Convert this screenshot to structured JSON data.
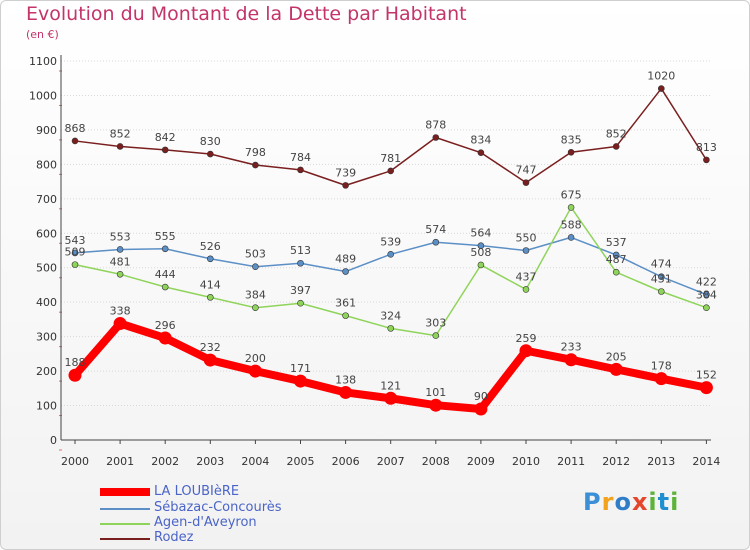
{
  "header": {
    "title": "Evolution du Montant de la Dette par Habitant",
    "subtitle": "(en €)"
  },
  "chart_data": {
    "type": "line",
    "title": "Evolution du Montant de la Dette par Habitant",
    "subtitle": "(en €)",
    "xlabel": "",
    "ylabel": "",
    "ylim": [
      0,
      1100
    ],
    "yticks": [
      0,
      100,
      200,
      300,
      400,
      500,
      600,
      700,
      800,
      900,
      1000,
      1100
    ],
    "grid": "horizontal",
    "legend_position": "bottom-left",
    "categories": [
      "2000",
      "2001",
      "2002",
      "2003",
      "2004",
      "2005",
      "2006",
      "2007",
      "2008",
      "2009",
      "2010",
      "2011",
      "2012",
      "2013",
      "2014"
    ],
    "series": [
      {
        "name": "Rodez",
        "color": "#7a1f1f",
        "values": [
          868,
          852,
          842,
          830,
          798,
          784,
          739,
          781,
          878,
          834,
          747,
          835,
          852,
          1020,
          813
        ]
      },
      {
        "name": "Sébazac-Concourès",
        "color": "#5b8fc6",
        "values": [
          543,
          553,
          555,
          526,
          503,
          513,
          489,
          539,
          574,
          564,
          550,
          588,
          537,
          474,
          422
        ]
      },
      {
        "name": "Agen-d'Aveyron",
        "color": "#8fd45a",
        "values": [
          509,
          481,
          444,
          414,
          384,
          397,
          361,
          324,
          303,
          508,
          437,
          675,
          487,
          431,
          384
        ]
      },
      {
        "name": "LA LOUBIèRE",
        "color": "#ff0000",
        "values": [
          188,
          338,
          296,
          232,
          200,
          171,
          138,
          121,
          101,
          90,
          259,
          233,
          205,
          178,
          152
        ]
      }
    ]
  },
  "legend": {
    "items": [
      {
        "label": "LA LOUBIèRE",
        "color": "#ff0000"
      },
      {
        "label": "Sébazac-Concourès",
        "color": "#5b8fc6"
      },
      {
        "label": "Agen-d'Aveyron",
        "color": "#8fd45a"
      },
      {
        "label": "Rodez",
        "color": "#7a1f1f"
      }
    ]
  },
  "logo": {
    "text": "Proxiti"
  }
}
